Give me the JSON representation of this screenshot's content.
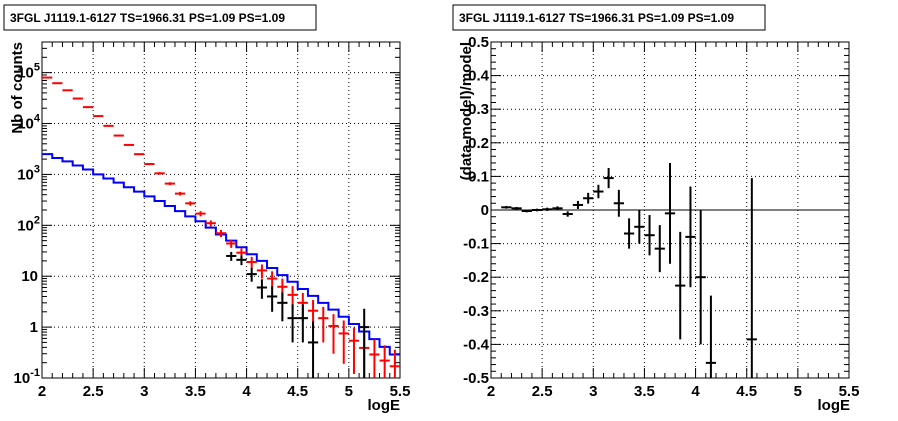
{
  "chart_data": [
    {
      "type": "line",
      "panel": "left",
      "title": "3FGL J1119.1-6127 TS=1966.31 PS=1.09 PS=1.09",
      "xlabel": "logE",
      "ylabel": "Nb of counts",
      "xlim": [
        2,
        5.5
      ],
      "ylim": [
        0.1,
        400000
      ],
      "yscale": "log",
      "grid": true,
      "x_ticks": [
        "2",
        "2.5",
        "3",
        "3.5",
        "4",
        "4.5",
        "5",
        "5.5"
      ],
      "y_ticks": [
        {
          "value": 0.1,
          "base": "10",
          "exp": "-1"
        },
        {
          "value": 1,
          "base": "1",
          "exp": ""
        },
        {
          "value": 10,
          "base": "10",
          "exp": ""
        },
        {
          "value": 100,
          "base": "10",
          "exp": "2"
        },
        {
          "value": 1000,
          "base": "10",
          "exp": "3"
        },
        {
          "value": 10000,
          "base": "10",
          "exp": "4"
        },
        {
          "value": 100000,
          "base": "10",
          "exp": "5"
        }
      ],
      "bin_edges": [
        2.0,
        2.1,
        2.2,
        2.3,
        2.4,
        2.5,
        2.6,
        2.7,
        2.8,
        2.9,
        3.0,
        3.1,
        3.2,
        3.3,
        3.4,
        3.5,
        3.6,
        3.7,
        3.8,
        3.9,
        4.0,
        4.1,
        4.2,
        4.3,
        4.4,
        4.5,
        4.6,
        4.7,
        4.8,
        4.9,
        5.0,
        5.1,
        5.2,
        5.3,
        5.4,
        5.5
      ],
      "series": [
        {
          "kind": "step",
          "color": "#0000ff",
          "values": [
            2500,
            2100,
            1800,
            1500,
            1250,
            1000,
            830,
            690,
            560,
            460,
            370,
            300,
            240,
            190,
            150,
            120,
            90,
            66,
            50,
            37,
            27,
            20,
            14.5,
            10.5,
            7.8,
            5.6,
            4.1,
            3.0,
            2.2,
            1.6,
            1.15,
            0.82,
            0.58,
            0.41,
            0.29
          ]
        },
        {
          "kind": "errorbar",
          "color": "#ff0000",
          "x": [
            2.05,
            2.15,
            2.25,
            2.35,
            2.45,
            2.55,
            2.65,
            2.75,
            2.85,
            2.95,
            3.05,
            3.15,
            3.25,
            3.35,
            3.45,
            3.55,
            3.65,
            3.75,
            3.85,
            3.95,
            4.05,
            4.15,
            4.25,
            4.35,
            4.45,
            4.55,
            4.65,
            4.75,
            4.85,
            4.95,
            5.05,
            5.15,
            5.25,
            5.35,
            5.45
          ],
          "y": [
            80000,
            62000,
            45000,
            31000,
            21000,
            14000,
            9000,
            5800,
            3800,
            2500,
            1600,
            1050,
            660,
            420,
            270,
            170,
            110,
            70,
            44,
            29,
            19,
            13,
            9,
            6.2,
            4.3,
            3.0,
            2.1,
            1.5,
            1.05,
            0.75,
            0.54,
            0.39,
            0.29,
            0.22,
            0.17
          ],
          "ylow": [
            78000,
            60500,
            44000,
            30200,
            20500,
            13600,
            8700,
            5600,
            3650,
            2400,
            1520,
            990,
            615,
            385,
            243,
            150,
            95,
            59,
            36,
            22.5,
            14,
            9,
            5.5,
            3.4,
            2.2,
            1.3,
            0.8,
            0.5,
            0.3,
            0.19,
            0.12,
            0.1,
            0.1,
            0.1,
            0.1
          ],
          "yhigh": [
            82000,
            63500,
            46000,
            31800,
            21500,
            14400,
            9300,
            6000,
            3950,
            2600,
            1680,
            1110,
            705,
            455,
            297,
            190,
            125,
            81,
            52,
            35.5,
            24,
            17,
            12.5,
            9,
            6.4,
            4.7,
            3.4,
            2.5,
            1.8,
            1.35,
            0.98,
            0.74,
            0.57,
            0.44,
            0.36
          ]
        },
        {
          "kind": "errorbar",
          "color": "#000000",
          "x": [
            3.85,
            3.95,
            4.05,
            4.15,
            4.25,
            4.35,
            4.45,
            4.55,
            4.65,
            5.15
          ],
          "y": [
            25,
            21,
            11,
            6,
            4,
            3,
            1.5,
            1.5,
            0.5,
            1
          ],
          "ylow": [
            20,
            16.5,
            7.8,
            3.6,
            2,
            1.3,
            0.5,
            0.5,
            0.1,
            0.1
          ],
          "yhigh": [
            30,
            25.5,
            14.5,
            8.7,
            6.3,
            4.8,
            2.8,
            2.8,
            1.3,
            2.3
          ]
        }
      ]
    },
    {
      "type": "scatter",
      "panel": "right",
      "title": "3FGL J1119.1-6127 TS=1966.31 PS=1.09 PS=1.09",
      "xlabel": "logE",
      "ylabel": "(data-model)/model",
      "xlim": [
        2,
        5.5
      ],
      "ylim": [
        -0.5,
        0.5
      ],
      "grid": true,
      "x_ticks": [
        "2",
        "2.5",
        "3",
        "3.5",
        "4",
        "4.5",
        "5",
        "5.5"
      ],
      "y_ticks": [
        "-0.5",
        "-0.4",
        "-0.3",
        "-0.2",
        "-0.1",
        "0",
        "0.1",
        "0.2",
        "0.3",
        "0.4",
        "0.5"
      ],
      "series": [
        {
          "kind": "errorbar",
          "color": "#000000",
          "x": [
            2.15,
            2.25,
            2.35,
            2.45,
            2.55,
            2.65,
            2.75,
            2.85,
            2.95,
            3.05,
            3.15,
            3.25,
            3.35,
            3.45,
            3.55,
            3.65,
            3.75,
            3.85,
            3.95,
            4.05,
            4.15,
            4.55
          ],
          "y": [
            0.008,
            0.005,
            -0.003,
            0.0,
            0.002,
            0.005,
            -0.012,
            0.015,
            0.035,
            0.055,
            0.095,
            0.02,
            -0.07,
            -0.05,
            -0.075,
            -0.115,
            -0.01,
            -0.225,
            -0.08,
            -0.2,
            -0.455,
            -0.385
          ],
          "yerr": [
            0.004,
            0.004,
            0.004,
            0.004,
            0.005,
            0.006,
            0.008,
            0.012,
            0.016,
            0.02,
            0.03,
            0.04,
            0.045,
            0.05,
            0.06,
            0.07,
            0.15,
            0.16,
            0.15,
            0.2,
            0.2,
            0.48
          ]
        }
      ]
    }
  ]
}
